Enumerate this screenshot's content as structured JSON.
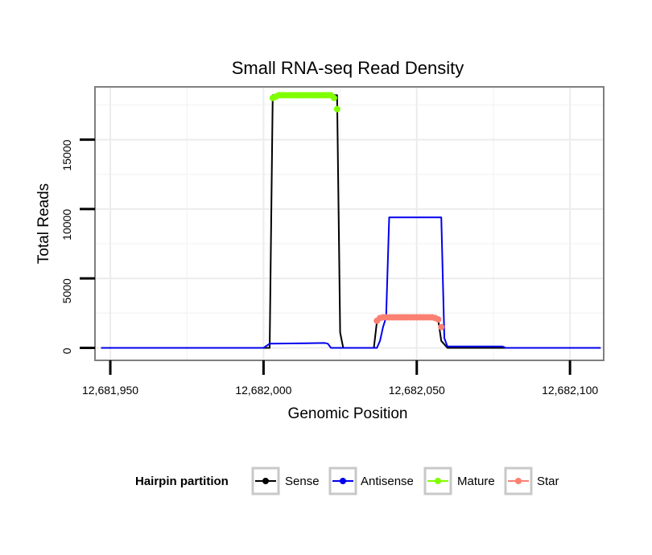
{
  "chart_data": {
    "type": "line",
    "title": "Small RNA-seq Read Density",
    "xlabel": "Genomic Position",
    "ylabel": "Total Reads",
    "xlim": [
      12681945,
      12682111
    ],
    "ylim": [
      -900,
      18800
    ],
    "x_ticks": [
      {
        "value": 12681950,
        "label": "12,681,950"
      },
      {
        "value": 12682000,
        "label": "12,682,000"
      },
      {
        "value": 12682050,
        "label": "12,682,050"
      },
      {
        "value": 12682100,
        "label": "12,682,100"
      }
    ],
    "y_ticks": [
      {
        "value": 0,
        "label": "0"
      },
      {
        "value": 5000,
        "label": "5000"
      },
      {
        "value": 10000,
        "label": "10000"
      },
      {
        "value": 15000,
        "label": "15000"
      }
    ],
    "x_minor_ticks": [
      12681975,
      12682025,
      12682075
    ],
    "y_minor_ticks": [
      2500,
      7500,
      12500,
      17500
    ],
    "legend": {
      "title": "Hairpin partition",
      "position": "bottom",
      "entries": [
        "Sense",
        "Antisense",
        "Mature",
        "Star"
      ]
    },
    "series": [
      {
        "name": "Sense",
        "style": "line",
        "color": "#000000",
        "x": [
          12681947,
          12682002,
          12682003,
          12682004,
          12682024,
          12682025,
          12682026,
          12682036,
          12682037,
          12682038,
          12682056,
          12682057,
          12682058,
          12682060,
          12682110
        ],
        "y": [
          0,
          0,
          18200,
          18200,
          18200,
          1100,
          0,
          0,
          1900,
          2200,
          2200,
          2000,
          500,
          0,
          0
        ]
      },
      {
        "name": "Antisense",
        "style": "line",
        "color": "#0000ee",
        "x": [
          12681947,
          12682000,
          12682002,
          12682020,
          12682021,
          12682022,
          12682037,
          12682038,
          12682039,
          12682040,
          12682041,
          12682058,
          12682059,
          12682060,
          12682078,
          12682079,
          12682110
        ],
        "y": [
          0,
          0,
          300,
          350,
          300,
          0,
          0,
          500,
          1500,
          2200,
          9400,
          9400,
          700,
          100,
          100,
          0,
          0
        ]
      },
      {
        "name": "Mature",
        "style": "points",
        "color": "#7fff00",
        "x": [
          12682003,
          12682004,
          12682005,
          12682006,
          12682007,
          12682008,
          12682009,
          12682010,
          12682011,
          12682012,
          12682013,
          12682014,
          12682015,
          12682016,
          12682017,
          12682018,
          12682019,
          12682020,
          12682021,
          12682022,
          12682023,
          12682024
        ],
        "y": [
          18000,
          18100,
          18200,
          18200,
          18200,
          18200,
          18200,
          18200,
          18200,
          18200,
          18200,
          18200,
          18200,
          18200,
          18200,
          18200,
          18200,
          18200,
          18200,
          18200,
          18000,
          17200
        ]
      },
      {
        "name": "Star",
        "style": "points",
        "color": "#fa8072",
        "x": [
          12682037,
          12682038,
          12682039,
          12682040,
          12682041,
          12682042,
          12682043,
          12682044,
          12682045,
          12682046,
          12682047,
          12682048,
          12682049,
          12682050,
          12682051,
          12682052,
          12682053,
          12682054,
          12682055,
          12682056,
          12682057,
          12682058
        ],
        "y": [
          1950,
          2150,
          2200,
          2200,
          2200,
          2200,
          2200,
          2200,
          2200,
          2200,
          2200,
          2200,
          2200,
          2200,
          2200,
          2200,
          2200,
          2200,
          2200,
          2150,
          2050,
          1500
        ]
      }
    ]
  }
}
